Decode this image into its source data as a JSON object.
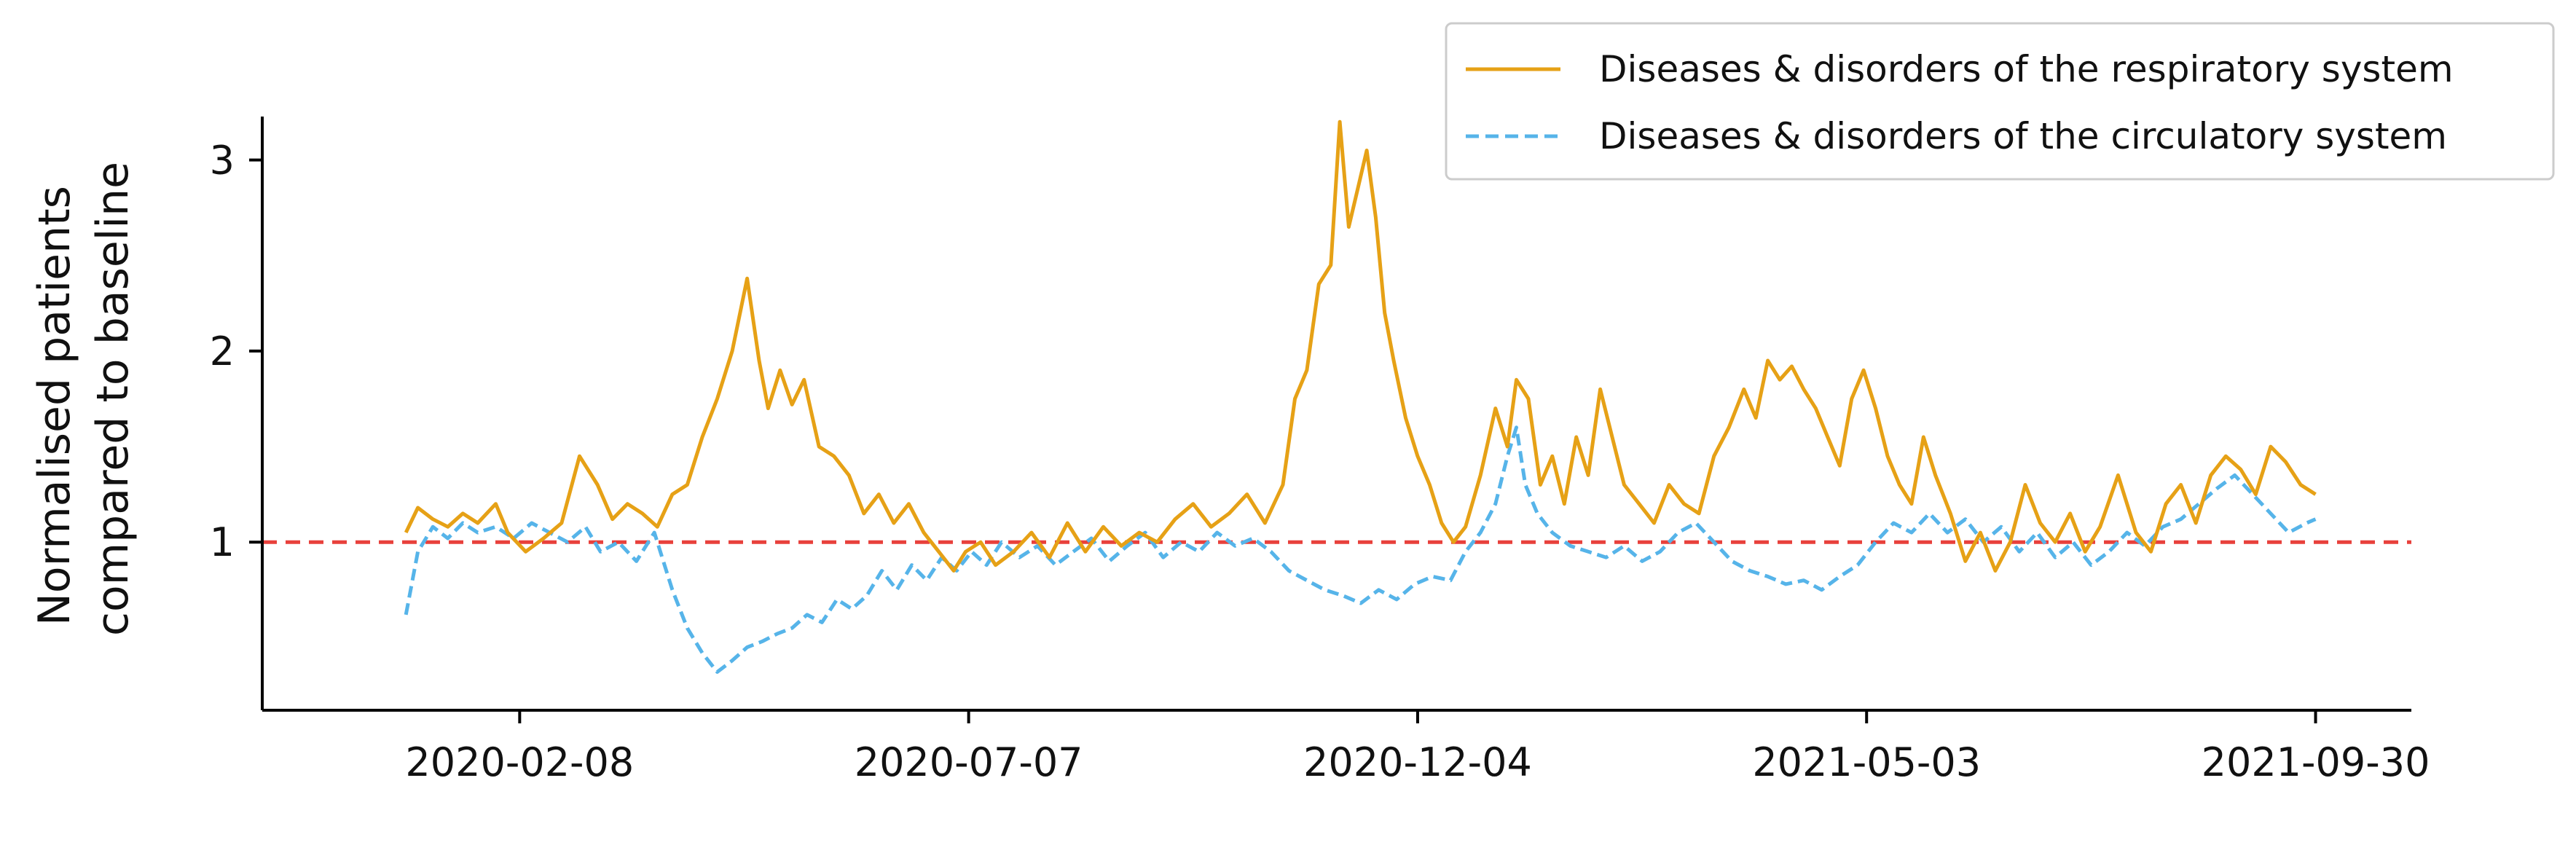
{
  "chart_data": {
    "type": "line",
    "title": "",
    "xlabel": "",
    "ylabel_lines": [
      "Normalised patients",
      "compared to baseline"
    ],
    "x_ticks": [
      "2020-02-08",
      "2020-07-07",
      "2020-12-04",
      "2021-05-03",
      "2021-09-30"
    ],
    "y_ticks": [
      "1",
      "2",
      "3"
    ],
    "x_range": [
      "2019-11-14",
      "2021-11-01"
    ],
    "ylim": [
      0.12,
      3.38
    ],
    "baseline": {
      "value": 1,
      "color": "#e8413c",
      "style": "dashed"
    },
    "grid": false,
    "legend_position": "top-right",
    "series": [
      {
        "name": "Diseases & disorders of the respiratory system",
        "color": "#e6a116",
        "style": "solid",
        "points": [
          [
            "2020-01-01",
            1.05
          ],
          [
            "2020-01-05",
            1.18
          ],
          [
            "2020-01-10",
            1.12
          ],
          [
            "2020-01-15",
            1.08
          ],
          [
            "2020-01-20",
            1.15
          ],
          [
            "2020-01-25",
            1.1
          ],
          [
            "2020-01-31",
            1.2
          ],
          [
            "2020-02-04",
            1.05
          ],
          [
            "2020-02-10",
            0.95
          ],
          [
            "2020-02-16",
            1.02
          ],
          [
            "2020-02-22",
            1.1
          ],
          [
            "2020-02-28",
            1.45
          ],
          [
            "2020-03-05",
            1.3
          ],
          [
            "2020-03-10",
            1.12
          ],
          [
            "2020-03-15",
            1.2
          ],
          [
            "2020-03-20",
            1.15
          ],
          [
            "2020-03-25",
            1.08
          ],
          [
            "2020-03-30",
            1.25
          ],
          [
            "2020-04-04",
            1.3
          ],
          [
            "2020-04-09",
            1.55
          ],
          [
            "2020-04-14",
            1.75
          ],
          [
            "2020-04-19",
            2.0
          ],
          [
            "2020-04-24",
            2.38
          ],
          [
            "2020-04-28",
            1.95
          ],
          [
            "2020-05-01",
            1.7
          ],
          [
            "2020-05-05",
            1.9
          ],
          [
            "2020-05-09",
            1.72
          ],
          [
            "2020-05-13",
            1.85
          ],
          [
            "2020-05-18",
            1.5
          ],
          [
            "2020-05-23",
            1.45
          ],
          [
            "2020-05-28",
            1.35
          ],
          [
            "2020-06-02",
            1.15
          ],
          [
            "2020-06-07",
            1.25
          ],
          [
            "2020-06-12",
            1.1
          ],
          [
            "2020-06-17",
            1.2
          ],
          [
            "2020-06-22",
            1.05
          ],
          [
            "2020-06-27",
            0.95
          ],
          [
            "2020-07-02",
            0.85
          ],
          [
            "2020-07-06",
            0.95
          ],
          [
            "2020-07-11",
            1.0
          ],
          [
            "2020-07-16",
            0.88
          ],
          [
            "2020-07-22",
            0.95
          ],
          [
            "2020-07-28",
            1.05
          ],
          [
            "2020-08-03",
            0.92
          ],
          [
            "2020-08-09",
            1.1
          ],
          [
            "2020-08-15",
            0.95
          ],
          [
            "2020-08-21",
            1.08
          ],
          [
            "2020-08-27",
            0.98
          ],
          [
            "2020-09-02",
            1.05
          ],
          [
            "2020-09-08",
            1.0
          ],
          [
            "2020-09-14",
            1.12
          ],
          [
            "2020-09-20",
            1.2
          ],
          [
            "2020-09-26",
            1.08
          ],
          [
            "2020-10-02",
            1.15
          ],
          [
            "2020-10-08",
            1.25
          ],
          [
            "2020-10-14",
            1.1
          ],
          [
            "2020-10-20",
            1.3
          ],
          [
            "2020-10-24",
            1.75
          ],
          [
            "2020-10-28",
            1.9
          ],
          [
            "2020-11-01",
            2.35
          ],
          [
            "2020-11-05",
            2.45
          ],
          [
            "2020-11-08",
            3.2
          ],
          [
            "2020-11-11",
            2.65
          ],
          [
            "2020-11-14",
            2.85
          ],
          [
            "2020-11-17",
            3.05
          ],
          [
            "2020-11-20",
            2.7
          ],
          [
            "2020-11-23",
            2.2
          ],
          [
            "2020-11-26",
            1.95
          ],
          [
            "2020-11-30",
            1.65
          ],
          [
            "2020-12-04",
            1.45
          ],
          [
            "2020-12-08",
            1.3
          ],
          [
            "2020-12-12",
            1.1
          ],
          [
            "2020-12-16",
            1.0
          ],
          [
            "2020-12-20",
            1.08
          ],
          [
            "2020-12-25",
            1.35
          ],
          [
            "2020-12-30",
            1.7
          ],
          [
            "2021-01-03",
            1.5
          ],
          [
            "2021-01-06",
            1.85
          ],
          [
            "2021-01-10",
            1.75
          ],
          [
            "2021-01-14",
            1.3
          ],
          [
            "2021-01-18",
            1.45
          ],
          [
            "2021-01-22",
            1.2
          ],
          [
            "2021-01-26",
            1.55
          ],
          [
            "2021-01-30",
            1.35
          ],
          [
            "2021-02-03",
            1.8
          ],
          [
            "2021-02-07",
            1.55
          ],
          [
            "2021-02-11",
            1.3
          ],
          [
            "2021-02-16",
            1.2
          ],
          [
            "2021-02-21",
            1.1
          ],
          [
            "2021-02-26",
            1.3
          ],
          [
            "2021-03-03",
            1.2
          ],
          [
            "2021-03-08",
            1.15
          ],
          [
            "2021-03-13",
            1.45
          ],
          [
            "2021-03-18",
            1.6
          ],
          [
            "2021-03-23",
            1.8
          ],
          [
            "2021-03-27",
            1.65
          ],
          [
            "2021-03-31",
            1.95
          ],
          [
            "2021-04-04",
            1.85
          ],
          [
            "2021-04-08",
            1.92
          ],
          [
            "2021-04-12",
            1.8
          ],
          [
            "2021-04-16",
            1.7
          ],
          [
            "2021-04-20",
            1.55
          ],
          [
            "2021-04-24",
            1.4
          ],
          [
            "2021-04-28",
            1.75
          ],
          [
            "2021-05-02",
            1.9
          ],
          [
            "2021-05-06",
            1.7
          ],
          [
            "2021-05-10",
            1.45
          ],
          [
            "2021-05-14",
            1.3
          ],
          [
            "2021-05-18",
            1.2
          ],
          [
            "2021-05-22",
            1.55
          ],
          [
            "2021-05-26",
            1.35
          ],
          [
            "2021-05-31",
            1.15
          ],
          [
            "2021-06-05",
            0.9
          ],
          [
            "2021-06-10",
            1.05
          ],
          [
            "2021-06-15",
            0.85
          ],
          [
            "2021-06-20",
            1.0
          ],
          [
            "2021-06-25",
            1.3
          ],
          [
            "2021-06-30",
            1.1
          ],
          [
            "2021-07-05",
            1.0
          ],
          [
            "2021-07-10",
            1.15
          ],
          [
            "2021-07-15",
            0.95
          ],
          [
            "2021-07-20",
            1.08
          ],
          [
            "2021-07-26",
            1.35
          ],
          [
            "2021-08-01",
            1.05
          ],
          [
            "2021-08-06",
            0.95
          ],
          [
            "2021-08-11",
            1.2
          ],
          [
            "2021-08-16",
            1.3
          ],
          [
            "2021-08-21",
            1.1
          ],
          [
            "2021-08-26",
            1.35
          ],
          [
            "2021-08-31",
            1.45
          ],
          [
            "2021-09-05",
            1.38
          ],
          [
            "2021-09-10",
            1.25
          ],
          [
            "2021-09-15",
            1.5
          ],
          [
            "2021-09-20",
            1.42
          ],
          [
            "2021-09-25",
            1.3
          ],
          [
            "2021-09-30",
            1.25
          ]
        ]
      },
      {
        "name": "Diseases & disorders of the circulatory system",
        "color": "#56b4e9",
        "style": "dashed",
        "points": [
          [
            "2020-01-01",
            0.62
          ],
          [
            "2020-01-05",
            0.95
          ],
          [
            "2020-01-10",
            1.08
          ],
          [
            "2020-01-15",
            1.02
          ],
          [
            "2020-01-20",
            1.1
          ],
          [
            "2020-01-25",
            1.05
          ],
          [
            "2020-01-31",
            1.08
          ],
          [
            "2020-02-06",
            1.02
          ],
          [
            "2020-02-12",
            1.1
          ],
          [
            "2020-02-18",
            1.05
          ],
          [
            "2020-02-24",
            1.0
          ],
          [
            "2020-03-01",
            1.08
          ],
          [
            "2020-03-06",
            0.95
          ],
          [
            "2020-03-12",
            1.0
          ],
          [
            "2020-03-18",
            0.9
          ],
          [
            "2020-03-24",
            1.05
          ],
          [
            "2020-03-30",
            0.75
          ],
          [
            "2020-04-04",
            0.55
          ],
          [
            "2020-04-09",
            0.42
          ],
          [
            "2020-04-14",
            0.32
          ],
          [
            "2020-04-19",
            0.38
          ],
          [
            "2020-04-24",
            0.45
          ],
          [
            "2020-04-29",
            0.48
          ],
          [
            "2020-05-04",
            0.52
          ],
          [
            "2020-05-09",
            0.55
          ],
          [
            "2020-05-14",
            0.62
          ],
          [
            "2020-05-19",
            0.58
          ],
          [
            "2020-05-24",
            0.7
          ],
          [
            "2020-05-29",
            0.65
          ],
          [
            "2020-06-03",
            0.72
          ],
          [
            "2020-06-08",
            0.85
          ],
          [
            "2020-06-13",
            0.75
          ],
          [
            "2020-06-18",
            0.88
          ],
          [
            "2020-06-23",
            0.8
          ],
          [
            "2020-06-28",
            0.92
          ],
          [
            "2020-07-03",
            0.85
          ],
          [
            "2020-07-08",
            0.95
          ],
          [
            "2020-07-13",
            0.88
          ],
          [
            "2020-07-18",
            1.0
          ],
          [
            "2020-07-24",
            0.92
          ],
          [
            "2020-07-30",
            0.98
          ],
          [
            "2020-08-05",
            0.88
          ],
          [
            "2020-08-11",
            0.95
          ],
          [
            "2020-08-17",
            1.02
          ],
          [
            "2020-08-23",
            0.9
          ],
          [
            "2020-08-29",
            0.98
          ],
          [
            "2020-09-04",
            1.05
          ],
          [
            "2020-09-10",
            0.92
          ],
          [
            "2020-09-16",
            1.0
          ],
          [
            "2020-09-22",
            0.95
          ],
          [
            "2020-09-28",
            1.05
          ],
          [
            "2020-10-04",
            0.98
          ],
          [
            "2020-10-10",
            1.02
          ],
          [
            "2020-10-16",
            0.95
          ],
          [
            "2020-10-22",
            0.85
          ],
          [
            "2020-10-28",
            0.8
          ],
          [
            "2020-11-03",
            0.75
          ],
          [
            "2020-11-09",
            0.72
          ],
          [
            "2020-11-15",
            0.68
          ],
          [
            "2020-11-21",
            0.75
          ],
          [
            "2020-11-27",
            0.7
          ],
          [
            "2020-12-03",
            0.78
          ],
          [
            "2020-12-09",
            0.82
          ],
          [
            "2020-12-15",
            0.8
          ],
          [
            "2020-12-20",
            0.95
          ],
          [
            "2020-12-25",
            1.05
          ],
          [
            "2020-12-30",
            1.2
          ],
          [
            "2021-01-03",
            1.45
          ],
          [
            "2021-01-06",
            1.6
          ],
          [
            "2021-01-09",
            1.3
          ],
          [
            "2021-01-13",
            1.15
          ],
          [
            "2021-01-18",
            1.05
          ],
          [
            "2021-01-24",
            0.98
          ],
          [
            "2021-01-30",
            0.95
          ],
          [
            "2021-02-05",
            0.92
          ],
          [
            "2021-02-11",
            0.98
          ],
          [
            "2021-02-17",
            0.9
          ],
          [
            "2021-02-23",
            0.95
          ],
          [
            "2021-03-01",
            1.05
          ],
          [
            "2021-03-07",
            1.1
          ],
          [
            "2021-03-13",
            1.0
          ],
          [
            "2021-03-19",
            0.9
          ],
          [
            "2021-03-25",
            0.85
          ],
          [
            "2021-03-31",
            0.82
          ],
          [
            "2021-04-06",
            0.78
          ],
          [
            "2021-04-12",
            0.8
          ],
          [
            "2021-04-18",
            0.75
          ],
          [
            "2021-04-24",
            0.82
          ],
          [
            "2021-04-30",
            0.88
          ],
          [
            "2021-05-06",
            1.0
          ],
          [
            "2021-05-12",
            1.1
          ],
          [
            "2021-05-18",
            1.05
          ],
          [
            "2021-05-24",
            1.15
          ],
          [
            "2021-05-30",
            1.05
          ],
          [
            "2021-06-05",
            1.12
          ],
          [
            "2021-06-11",
            1.0
          ],
          [
            "2021-06-17",
            1.08
          ],
          [
            "2021-06-23",
            0.95
          ],
          [
            "2021-06-29",
            1.05
          ],
          [
            "2021-07-05",
            0.92
          ],
          [
            "2021-07-11",
            1.0
          ],
          [
            "2021-07-17",
            0.88
          ],
          [
            "2021-07-23",
            0.95
          ],
          [
            "2021-07-29",
            1.05
          ],
          [
            "2021-08-04",
            0.98
          ],
          [
            "2021-08-10",
            1.08
          ],
          [
            "2021-08-16",
            1.12
          ],
          [
            "2021-08-22",
            1.2
          ],
          [
            "2021-08-28",
            1.28
          ],
          [
            "2021-09-03",
            1.35
          ],
          [
            "2021-09-09",
            1.25
          ],
          [
            "2021-09-15",
            1.15
          ],
          [
            "2021-09-21",
            1.05
          ],
          [
            "2021-09-27",
            1.1
          ],
          [
            "2021-09-30",
            1.12
          ]
        ]
      }
    ]
  }
}
